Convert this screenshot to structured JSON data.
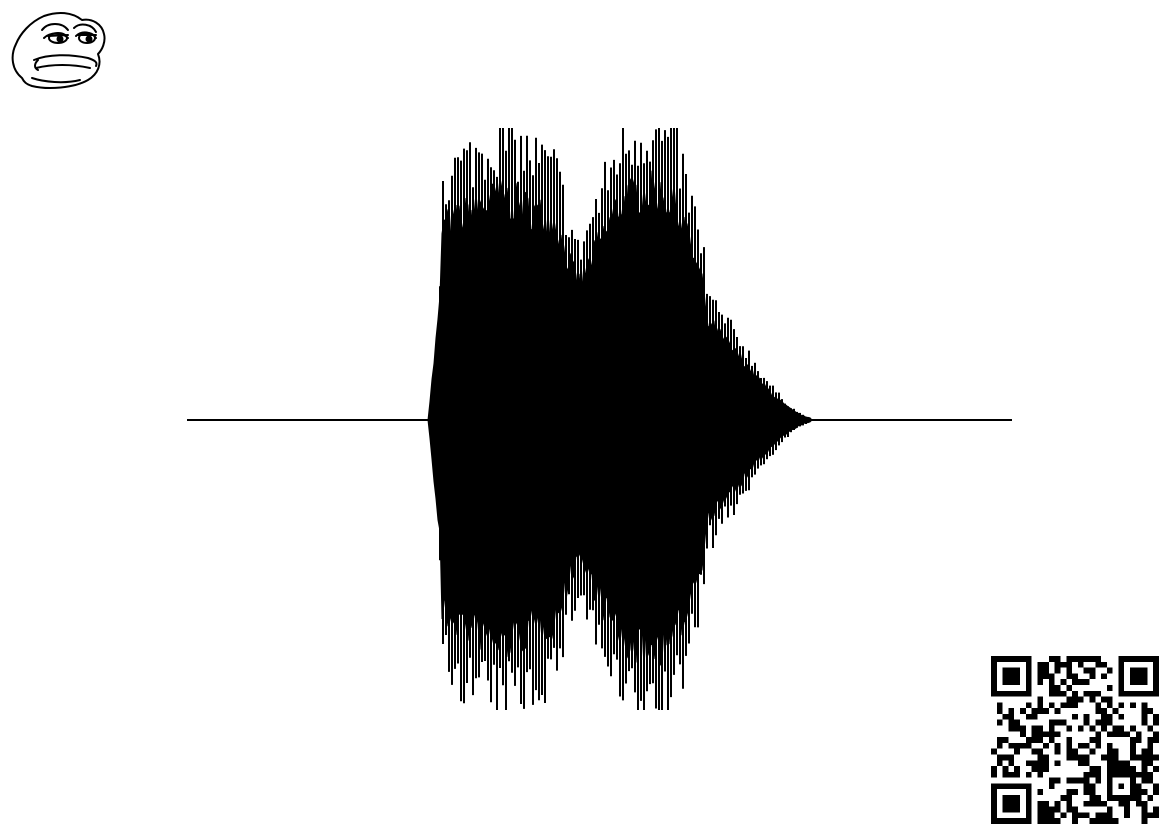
{
  "icons": {
    "logo": "frog-face-icon",
    "qr": "qr-code-icon"
  },
  "colors": {
    "background": "#ffffff",
    "waveform": "#000000",
    "line_art": "#000000",
    "qr_dark": "#000000"
  }
}
